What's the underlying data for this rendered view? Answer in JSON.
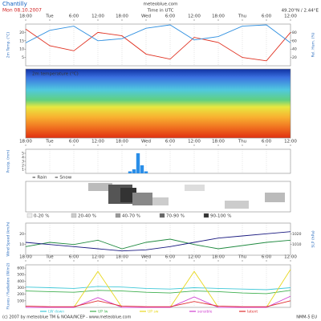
{
  "header": {
    "location": "Chantilly",
    "date": "Mon 08.10.2007",
    "site": "meteoblue.com",
    "time_note": "Time in UTC",
    "coords": "49.20°N / 2.44°E"
  },
  "time_axis": {
    "xlim": [
      0,
      66
    ],
    "xticks": [
      {
        "value": 0,
        "label": "18:00"
      },
      {
        "value": 6,
        "label": "Tue"
      },
      {
        "value": 12,
        "label": "6:00"
      },
      {
        "value": 18,
        "label": "12:00"
      },
      {
        "value": 24,
        "label": "18:00"
      },
      {
        "value": 30,
        "label": "Wed"
      },
      {
        "value": 36,
        "label": "6:00"
      },
      {
        "value": 42,
        "label": "12:00"
      },
      {
        "value": 48,
        "label": "18:00"
      },
      {
        "value": 54,
        "label": "Thu"
      },
      {
        "value": 60,
        "label": "6:00"
      },
      {
        "value": 66,
        "label": "12:00"
      }
    ]
  },
  "temperature_field": {
    "label": "2m temperature (°C)"
  },
  "precip_legend": [
    "= Rain",
    "= Snow"
  ],
  "cloud_legend": [
    "0-20 %",
    "20-40 %",
    "40-70 %",
    "70-90 %",
    "90-100 %"
  ],
  "chart_data": [
    {
      "type": "line",
      "ylabel": "2m Temp. (°C)",
      "y2label": "Rel. Hum. (%)",
      "x": [
        0,
        6,
        12,
        18,
        24,
        30,
        36,
        42,
        48,
        54,
        60,
        66
      ],
      "xlim": [
        0,
        66
      ],
      "ylim": [
        0,
        25
      ],
      "yticks": [
        5,
        10,
        15,
        20
      ],
      "y2lim": [
        0,
        100
      ],
      "y2ticks": [
        20,
        40,
        60,
        80
      ],
      "series": [
        {
          "name": "Temperature",
          "color": "#e03020",
          "values": [
            22,
            12,
            9,
            20,
            18,
            7,
            4,
            17,
            14,
            5,
            3,
            20
          ]
        },
        {
          "name": "Humidity",
          "color": "#3090e0",
          "axis": "y2",
          "values": [
            55,
            85,
            95,
            60,
            65,
            90,
            98,
            62,
            70,
            95,
            98,
            55
          ]
        }
      ]
    },
    {
      "type": "bar",
      "ylabel": "Precip. (mm)",
      "color": "#2a8ee8",
      "x": [
        26,
        27,
        28,
        29,
        30
      ],
      "values": [
        0.5,
        1,
        5,
        2,
        0.5
      ],
      "xlim": [
        0,
        66
      ],
      "ylim": [
        0,
        6
      ],
      "yticks": [
        1,
        2,
        3,
        4,
        5
      ]
    },
    {
      "type": "line",
      "ylabel": "Wind Speed (km/h)",
      "y2label": "SLP (hPa)",
      "x": [
        0,
        6,
        12,
        18,
        24,
        30,
        36,
        42,
        48,
        54,
        60,
        66
      ],
      "xlim": [
        0,
        66
      ],
      "ylim": [
        0,
        30
      ],
      "yticks": [
        10,
        20
      ],
      "y2lim": [
        1000,
        1030
      ],
      "y2ticks": [
        1010,
        1020
      ],
      "series": [
        {
          "name": "Wind",
          "color": "#208a40",
          "values": [
            8,
            12,
            10,
            14,
            6,
            12,
            15,
            10,
            6,
            9,
            12,
            14
          ]
        },
        {
          "name": "Pressure",
          "color": "#1a1a80",
          "axis": "y2",
          "values": [
            1012,
            1010,
            1008,
            1006,
            1004,
            1005,
            1008,
            1012,
            1016,
            1018,
            1020,
            1022
          ]
        }
      ]
    },
    {
      "type": "line",
      "ylabel": "Fluxes / Radiation (W/m2)",
      "legend": true,
      "x": [
        0,
        6,
        12,
        18,
        24,
        30,
        36,
        42,
        48,
        54,
        60,
        66
      ],
      "xlim": [
        0,
        66
      ],
      "ylim": [
        0,
        650
      ],
      "yticks": [
        100,
        200,
        300,
        400,
        500,
        600
      ],
      "series": [
        {
          "name": "LW down",
          "color": "#40c8d8",
          "values": [
            310,
            300,
            290,
            320,
            310,
            290,
            280,
            300,
            290,
            280,
            270,
            300
          ]
        },
        {
          "name": "UP lw",
          "color": "#40b050",
          "values": [
            250,
            240,
            230,
            260,
            250,
            230,
            220,
            250,
            240,
            220,
            210,
            260
          ]
        },
        {
          "name": "UP sw",
          "color": "#e8d820",
          "values": [
            0,
            0,
            0,
            550,
            0,
            0,
            0,
            550,
            0,
            0,
            0,
            580
          ]
        },
        {
          "name": "sensible",
          "color": "#d040d0",
          "values": [
            0,
            0,
            0,
            150,
            0,
            0,
            0,
            160,
            0,
            0,
            0,
            170
          ]
        },
        {
          "name": "latent",
          "color": "#e03030",
          "values": [
            20,
            10,
            10,
            100,
            20,
            10,
            10,
            90,
            20,
            10,
            10,
            100
          ]
        }
      ]
    }
  ],
  "footer": {
    "copyright": "(c) 2007 by meteoblue TM & NOAA/NCEP - www.meteoblue.com",
    "model": "NMM-5 EU"
  }
}
